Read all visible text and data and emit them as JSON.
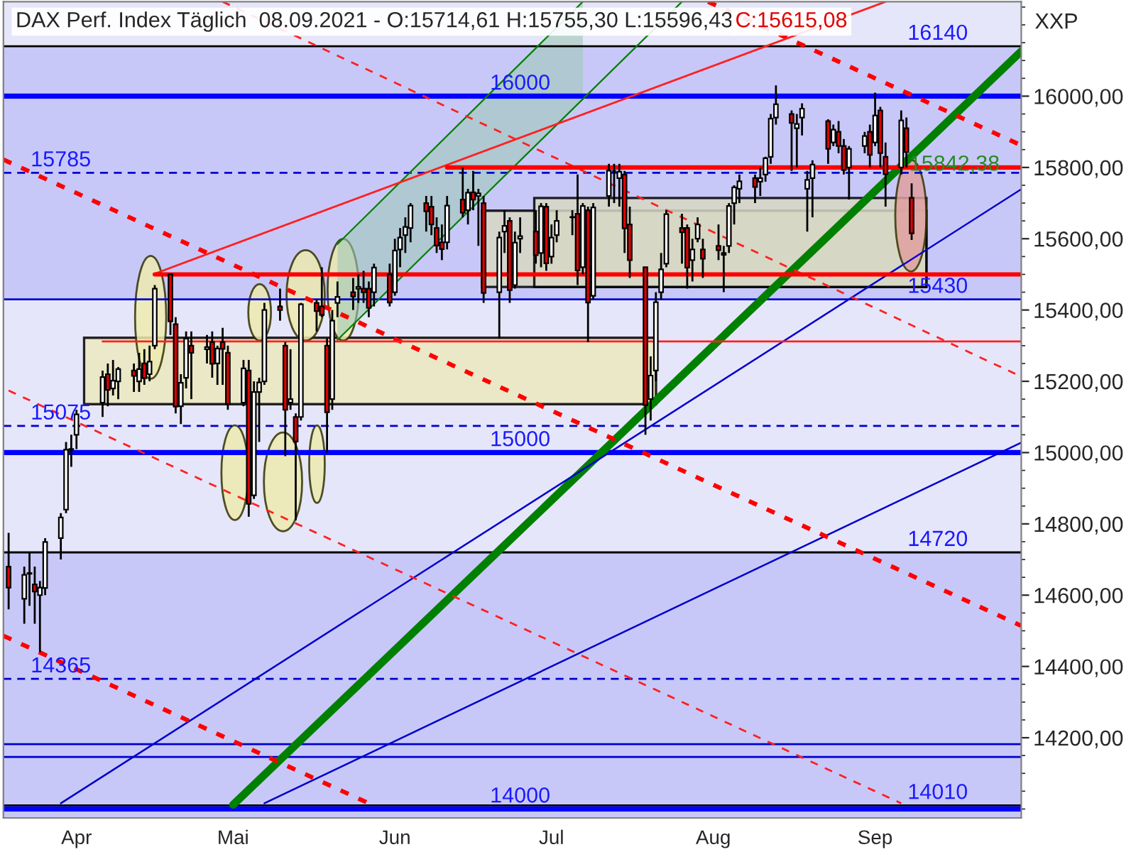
{
  "chart_data": {
    "type": "candlestick",
    "title": "DAX Perf. Index Täglich  08.09.2021 - O:15714,61 H:15755,30 L:15596,43",
    "subtitle": "C:15615,08",
    "ylabel": "XXP",
    "x": [
      "2021-03-19",
      "2021-03-22",
      "2021-03-23",
      "2021-03-24",
      "2021-03-25",
      "2021-03-26",
      "2021-03-29",
      "2021-03-30",
      "2021-03-31",
      "2021-04-01",
      "2021-04-06",
      "2021-04-07",
      "2021-04-08",
      "2021-04-09",
      "2021-04-12",
      "2021-04-13",
      "2021-04-14",
      "2021-04-15",
      "2021-04-16",
      "2021-04-19",
      "2021-04-20",
      "2021-04-21",
      "2021-04-22",
      "2021-04-23",
      "2021-04-26",
      "2021-04-27",
      "2021-04-28",
      "2021-04-29",
      "2021-04-30",
      "2021-05-03",
      "2021-05-04",
      "2021-05-05",
      "2021-05-06",
      "2021-05-07",
      "2021-05-10",
      "2021-05-11",
      "2021-05-12",
      "2021-05-13",
      "2021-05-14",
      "2021-05-17",
      "2021-05-18",
      "2021-05-19",
      "2021-05-20",
      "2021-05-21",
      "2021-05-24",
      "2021-05-25",
      "2021-05-26",
      "2021-05-27",
      "2021-05-28",
      "2021-05-31",
      "2021-06-01",
      "2021-06-02",
      "2021-06-03",
      "2021-06-04",
      "2021-06-07",
      "2021-06-08",
      "2021-06-09",
      "2021-06-10",
      "2021-06-11",
      "2021-06-14",
      "2021-06-15",
      "2021-06-16",
      "2021-06-17",
      "2021-06-18",
      "2021-06-21",
      "2021-06-22",
      "2021-06-23",
      "2021-06-24",
      "2021-06-25",
      "2021-06-28",
      "2021-06-29",
      "2021-06-30",
      "2021-07-01",
      "2021-07-02",
      "2021-07-05",
      "2021-07-06",
      "2021-07-07",
      "2021-07-08",
      "2021-07-09",
      "2021-07-12",
      "2021-07-13",
      "2021-07-14",
      "2021-07-15",
      "2021-07-16",
      "2021-07-19",
      "2021-07-20",
      "2021-07-21",
      "2021-07-22",
      "2021-07-23",
      "2021-07-26",
      "2021-07-27",
      "2021-07-28",
      "2021-07-29",
      "2021-07-30",
      "2021-08-02",
      "2021-08-03",
      "2021-08-04",
      "2021-08-05",
      "2021-08-06",
      "2021-08-09",
      "2021-08-10",
      "2021-08-11",
      "2021-08-12",
      "2021-08-13",
      "2021-08-16",
      "2021-08-17",
      "2021-08-18",
      "2021-08-19",
      "2021-08-20",
      "2021-08-23",
      "2021-08-24",
      "2021-08-25",
      "2021-08-26",
      "2021-08-27",
      "2021-08-30",
      "2021-08-31",
      "2021-09-01",
      "2021-09-02",
      "2021-09-03",
      "2021-09-06",
      "2021-09-07",
      "2021-09-08"
    ],
    "ohlc": [
      [
        14680,
        14775,
        14560,
        14621
      ],
      [
        14590,
        14680,
        14520,
        14657
      ],
      [
        14660,
        14720,
        14570,
        14662
      ],
      [
        14630,
        14680,
        14520,
        14610
      ],
      [
        14600,
        14640,
        14440,
        14621
      ],
      [
        14620,
        14760,
        14600,
        14749
      ],
      [
        14760,
        14830,
        14700,
        14818
      ],
      [
        14840,
        15030,
        14830,
        15008
      ],
      [
        15010,
        15050,
        14960,
        15008
      ],
      [
        15050,
        15120,
        15010,
        15107
      ],
      [
        15140,
        15230,
        15100,
        15212
      ],
      [
        15220,
        15250,
        15130,
        15176
      ],
      [
        15180,
        15260,
        15160,
        15202
      ],
      [
        15200,
        15240,
        15150,
        15234
      ],
      [
        15230,
        15250,
        15170,
        15215
      ],
      [
        15200,
        15280,
        15170,
        15234
      ],
      [
        15250,
        15290,
        15190,
        15209
      ],
      [
        15220,
        15300,
        15200,
        15255
      ],
      [
        15300,
        15470,
        15290,
        15460
      ],
      [
        15500,
        15500,
        15330,
        15368
      ],
      [
        15360,
        15380,
        15110,
        15129
      ],
      [
        15130,
        15220,
        15080,
        15196
      ],
      [
        15210,
        15340,
        15180,
        15320
      ],
      [
        15300,
        15340,
        15150,
        15280
      ],
      [
        15290,
        15330,
        15250,
        15296
      ],
      [
        15310,
        15340,
        15210,
        15249
      ],
      [
        15250,
        15300,
        15190,
        15292
      ],
      [
        15310,
        15350,
        15190,
        15291
      ],
      [
        15280,
        15300,
        15120,
        15136
      ],
      [
        15140,
        15260,
        15130,
        15236
      ],
      [
        15230,
        15260,
        14820,
        14856
      ],
      [
        14880,
        15200,
        14870,
        15170
      ],
      [
        15170,
        15210,
        15030,
        15197
      ],
      [
        15200,
        15420,
        15190,
        15400
      ],
      [
        15410,
        15460,
        15370,
        15400
      ],
      [
        15300,
        15310,
        14990,
        15120
      ],
      [
        15140,
        15290,
        15120,
        15150
      ],
      [
        15100,
        15110,
        14810,
        15031
      ],
      [
        15100,
        15420,
        15090,
        15416
      ],
      [
        15420,
        15430,
        15340,
        15397
      ],
      [
        15410,
        15520,
        15380,
        15386
      ],
      [
        15300,
        15320,
        15000,
        15113
      ],
      [
        15150,
        15400,
        15120,
        15370
      ],
      [
        15420,
        15480,
        15380,
        15437
      ],
      [
        15450,
        15490,
        15400,
        15438
      ],
      [
        15460,
        15500,
        15420,
        15465
      ],
      [
        15460,
        15510,
        15420,
        15450
      ],
      [
        15460,
        15480,
        15380,
        15406
      ],
      [
        15450,
        15530,
        15410,
        15519
      ],
      [
        15500,
        15530,
        15410,
        15421
      ],
      [
        15450,
        15600,
        15440,
        15567
      ],
      [
        15570,
        15630,
        15520,
        15603
      ],
      [
        15610,
        15660,
        15560,
        15633
      ],
      [
        15630,
        15700,
        15590,
        15693
      ],
      [
        15700,
        15720,
        15620,
        15677
      ],
      [
        15690,
        15720,
        15610,
        15640
      ],
      [
        15630,
        15660,
        15560,
        15581
      ],
      [
        15590,
        15640,
        15540,
        15571
      ],
      [
        15590,
        15720,
        15570,
        15693
      ],
      [
        15710,
        15800,
        15660,
        15673
      ],
      [
        15680,
        15740,
        15640,
        15729
      ],
      [
        15730,
        15790,
        15680,
        15710
      ],
      [
        15720,
        15740,
        15580,
        15727
      ],
      [
        15700,
        15720,
        15420,
        15448
      ],
      [
        15450,
        15620,
        15320,
        15603
      ],
      [
        15620,
        15680,
        15560,
        15636
      ],
      [
        15650,
        15660,
        15420,
        15456
      ],
      [
        15470,
        15620,
        15460,
        15589
      ],
      [
        15600,
        15660,
        15560,
        15607
      ],
      [
        15620,
        15680,
        15530,
        15554
      ],
      [
        15560,
        15700,
        15520,
        15691
      ],
      [
        15690,
        15700,
        15510,
        15531
      ],
      [
        15550,
        15640,
        15530,
        15603
      ],
      [
        15610,
        15680,
        15590,
        15650
      ],
      [
        15660,
        15680,
        15610,
        15661
      ],
      [
        15670,
        15780,
        15470,
        15511
      ],
      [
        15520,
        15700,
        15500,
        15692
      ],
      [
        15680,
        15690,
        15310,
        15421
      ],
      [
        15440,
        15700,
        15430,
        15688
      ],
      [
        15720,
        15810,
        15690,
        15791
      ],
      [
        15790,
        15810,
        15700,
        15790
      ],
      [
        15770,
        15810,
        15690,
        15788
      ],
      [
        15780,
        15790,
        15560,
        15629
      ],
      [
        15640,
        15690,
        15490,
        15540
      ],
      [
        15520,
        15520,
        15050,
        15133
      ],
      [
        15150,
        15270,
        15090,
        15216
      ],
      [
        15230,
        15450,
        15200,
        15422
      ],
      [
        15450,
        15560,
        15430,
        15514
      ],
      [
        15530,
        15680,
        15520,
        15669
      ],
      [
        15630,
        15670,
        15530,
        15618
      ],
      [
        15630,
        15640,
        15460,
        15519
      ],
      [
        15540,
        15600,
        15480,
        15570
      ],
      [
        15600,
        15660,
        15590,
        15640
      ],
      [
        15570,
        15600,
        15490,
        15544
      ],
      [
        15580,
        15640,
        15540,
        15568
      ],
      [
        15560,
        15580,
        15450,
        15555
      ],
      [
        15580,
        15700,
        15560,
        15692
      ],
      [
        15700,
        15750,
        15640,
        15744
      ],
      [
        15740,
        15780,
        15700,
        15761
      ],
      [
        15770,
        15780,
        15700,
        15745
      ],
      [
        15760,
        15800,
        15720,
        15770
      ],
      [
        15780,
        15830,
        15760,
        15826
      ],
      [
        15830,
        15950,
        15810,
        15937
      ],
      [
        15940,
        16030,
        15920,
        15977
      ],
      [
        15950,
        15960,
        15790,
        15925
      ],
      [
        15910,
        15950,
        15800,
        15922
      ],
      [
        15940,
        15980,
        15890,
        15965
      ],
      [
        15740,
        15790,
        15620,
        15765
      ],
      [
        15770,
        15820,
        15660,
        15808
      ],
      [
        15930,
        15935,
        15810,
        15852
      ],
      [
        15870,
        15920,
        15860,
        15906
      ],
      [
        15900,
        15930,
        15840,
        15860
      ],
      [
        15860,
        15880,
        15780,
        15793
      ],
      [
        15800,
        15860,
        15710,
        15852
      ],
      [
        15860,
        15900,
        15840,
        15888
      ],
      [
        15900,
        15920,
        15800,
        15835
      ],
      [
        15870,
        16010,
        15860,
        15946
      ],
      [
        15960,
        15970,
        15800,
        15840
      ],
      [
        15830,
        15870,
        15690,
        15781
      ],
      [
        15800,
        15960,
        15780,
        15932
      ],
      [
        15910,
        15940,
        15800,
        15843
      ],
      [
        15714.61,
        15755.3,
        15596.43,
        15615.08
      ]
    ],
    "series": [
      {
        "type": "line",
        "color": "#008000",
        "line_style": "solid",
        "x": [
          "2021-05-01",
          "2021-09-29"
        ],
        "values": [
          14012,
          16126
        ]
      },
      {
        "type": "line",
        "color": "#008001",
        "line_style": "solid",
        "x": [
          "2021-05-21",
          "2021-07-07"
        ],
        "values": [
          15585,
          16265
        ],
        "lower": [
          15316,
          15992
        ],
        "upper": [
          15585,
          16265
        ]
      },
      {
        "type": "line",
        "color": "#008001",
        "line_style": "solid",
        "x": [
          "2021-05-21",
          "2021-07-26"
        ],
        "values": [
          15316,
          16265
        ]
      },
      {
        "type": "line",
        "color": "#0000cc",
        "line_style": "solid",
        "x": [
          "2021-03-29",
          "2021-09-29"
        ],
        "values": [
          14016,
          15739
        ]
      },
      {
        "type": "line",
        "color": "#0000cc",
        "line_style": "solid",
        "x": [
          "2021-05-07",
          "2021-09-29"
        ],
        "values": [
          14016,
          15028
        ]
      },
      {
        "type": "line",
        "color": "#ff0000",
        "line_style": "dashed",
        "x": [
          "2021-03-18",
          "2021-09-29"
        ],
        "values": [
          15822,
          14514
        ]
      },
      {
        "type": "line",
        "color": "#ff0000",
        "line_style": "dashed",
        "x": [
          "2021-07-31",
          "2021-09-29"
        ],
        "values": [
          16265,
          15862
        ]
      },
      {
        "type": "line",
        "color": "#ff0000",
        "line_style": "dashed",
        "x": [
          "2021-03-18",
          "2021-05-27"
        ],
        "values": [
          14486,
          14016
        ]
      },
      {
        "type": "line",
        "color": "#ff2020",
        "line_style": "dashed",
        "x": [
          "2021-03-19",
          "2021-09-06"
        ],
        "values": [
          15174,
          14016
        ]
      },
      {
        "type": "line",
        "color": "#ff2020",
        "line_style": "dashed",
        "x": [
          "2021-04-29",
          "2021-09-29"
        ],
        "values": [
          16265,
          15213
        ]
      },
      {
        "type": "line",
        "color": "#ff2020",
        "line_style": "solid",
        "x": [
          "2021-04-16",
          "2021-09-03"
        ],
        "values": [
          15502,
          16265
        ]
      },
      {
        "type": "line",
        "color": "#ff0000",
        "line_style": "solid",
        "x": [
          "2021-06-11",
          "2021-09-29"
        ],
        "values": [
          15800,
          15800
        ]
      },
      {
        "type": "line",
        "color": "#ff0000",
        "line_style": "solid",
        "x": [
          "2021-04-16",
          "2021-09-29"
        ],
        "values": [
          15500,
          15500
        ]
      },
      {
        "type": "line",
        "color": "#ff2020",
        "line_style": "solid",
        "x": [
          "2021-04-06",
          "2021-09-29"
        ],
        "values": [
          15312,
          15312
        ]
      }
    ],
    "ref_lines": [
      {
        "axis": "y",
        "value": 16140,
        "color": "#000000",
        "line_style": "solid"
      },
      {
        "axis": "y",
        "value": 16000,
        "color": "#0000ff",
        "line_style": "solid"
      },
      {
        "axis": "y",
        "value": 15785,
        "color": "#0000cc",
        "line_style": "dashed"
      },
      {
        "axis": "y",
        "value": 15430,
        "color": "#0000cc",
        "line_style": "solid"
      },
      {
        "axis": "y",
        "value": 15075,
        "color": "#0000cc",
        "line_style": "dashed"
      },
      {
        "axis": "y",
        "value": 15000,
        "color": "#0000ff",
        "line_style": "solid"
      },
      {
        "axis": "y",
        "value": 14720,
        "color": "#000000",
        "line_style": "solid"
      },
      {
        "axis": "y",
        "value": 14365,
        "color": "#0000cc",
        "line_style": "dashed"
      },
      {
        "axis": "y",
        "value": 14182,
        "color": "#0000cc",
        "line_style": "solid"
      },
      {
        "axis": "y",
        "value": 14146,
        "color": "#0000cc",
        "line_style": "solid"
      },
      {
        "axis": "y",
        "value": 14010,
        "color": "#000000",
        "line_style": "solid"
      },
      {
        "axis": "y",
        "value": 14000,
        "color": "#0000ff",
        "line_style": "solid"
      }
    ],
    "bands": [
      {
        "axis": "y",
        "from": 15430,
        "to": 16140,
        "color": "#c8c8f8"
      },
      {
        "axis": "y",
        "from": 13975,
        "to": 14720,
        "color": "#c8c8f8"
      }
    ],
    "annotations": [
      {
        "text": "16140",
        "x": "2021-09-13",
        "y": 16140
      },
      {
        "text": "16000",
        "x": "2021-06-25",
        "y": 16000
      },
      {
        "text": "15785",
        "x": "2021-03-29",
        "y": 15785
      },
      {
        "text": "15430",
        "x": "2021-09-13",
        "y": 15430
      },
      {
        "text": "15075",
        "x": "2021-03-29",
        "y": 15075
      },
      {
        "text": "15000",
        "x": "2021-06-25",
        "y": 15000
      },
      {
        "text": "14720",
        "x": "2021-09-13",
        "y": 14720
      },
      {
        "text": "14365",
        "x": "2021-03-29",
        "y": 14365
      },
      {
        "text": "14010",
        "x": "2021-09-13",
        "y": 14010
      },
      {
        "text": "14000",
        "x": "2021-06-25",
        "y": 14000
      },
      "15842,38"
    ],
    "xlim": [
      "2021-03-18",
      "2021-09-29"
    ],
    "xticks": [
      {
        "value": "2021-04-01",
        "label": "Apr"
      },
      {
        "value": "2021-05-01",
        "label": "Mai"
      },
      {
        "value": "2021-06-01",
        "label": "Jun"
      },
      {
        "value": "2021-07-01",
        "label": "Jul"
      },
      {
        "value": "2021-08-01",
        "label": "Aug"
      },
      {
        "value": "2021-09-01",
        "label": "Sep"
      }
    ],
    "ylim": [
      13975,
      16265
    ],
    "yticks": [
      {
        "value": 14200,
        "label": "14200,00"
      },
      {
        "value": 14400,
        "label": "14400,00"
      },
      {
        "value": 14600,
        "label": "14600,00"
      },
      {
        "value": 14800,
        "label": "14800,00"
      },
      {
        "value": 15000,
        "label": "15000,00"
      },
      {
        "value": 15200,
        "label": "15200,00"
      },
      {
        "value": 15400,
        "label": "15400,00"
      },
      {
        "value": 15600,
        "label": "15600,00"
      },
      {
        "value": 15800,
        "label": "15800,00"
      },
      {
        "value": 16000,
        "label": "16000,00"
      }
    ],
    "grid": false,
    "legend": false
  }
}
